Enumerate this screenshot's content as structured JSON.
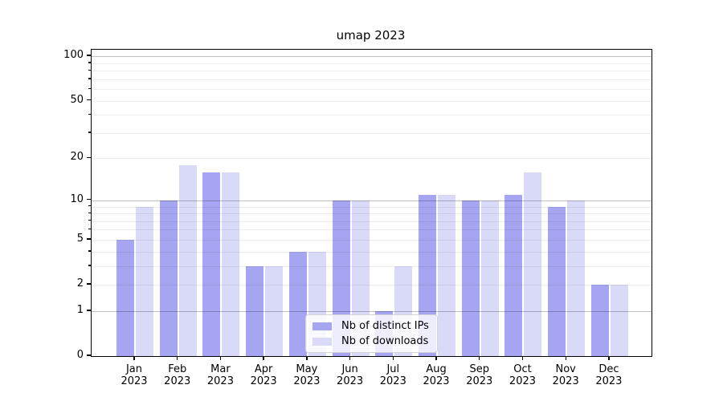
{
  "title": "umap 2023",
  "legend": {
    "items": [
      {
        "label": "Nb of distinct IPs",
        "color": "#a5a5f2"
      },
      {
        "label": "Nb of downloads",
        "color": "#d9d9f8"
      }
    ]
  },
  "axes": {
    "ytick_labels": [
      "100",
      "50",
      "20",
      "10",
      "5",
      "2",
      "1",
      "0"
    ]
  },
  "chart_data": {
    "type": "bar",
    "title": "umap 2023",
    "categories": [
      "Jan 2023",
      "Feb 2023",
      "Mar 2023",
      "Apr 2023",
      "May 2023",
      "Jun 2023",
      "Jul 2023",
      "Aug 2023",
      "Sep 2023",
      "Oct 2023",
      "Nov 2023",
      "Dec 2023"
    ],
    "series": [
      {
        "name": "Nb of distinct IPs",
        "color": "#a5a5f2",
        "values": [
          5,
          10,
          16,
          3,
          4,
          10,
          1,
          11,
          10,
          11,
          9,
          2
        ]
      },
      {
        "name": "Nb of downloads",
        "color": "#d9d9f8",
        "values": [
          9,
          18,
          16,
          3,
          4,
          10,
          3,
          11,
          10,
          16,
          10,
          2
        ]
      }
    ],
    "xlabel": "",
    "ylabel": "",
    "yscale": "log(1+x)",
    "ylim": [
      0,
      110
    ],
    "yticks": [
      0,
      1,
      2,
      5,
      10,
      20,
      50,
      100
    ],
    "major_gridlines": [
      1,
      10,
      100
    ],
    "minor_gridlines": [
      2,
      3,
      4,
      5,
      6,
      7,
      8,
      9,
      20,
      30,
      40,
      50,
      60,
      70,
      80,
      90
    ],
    "grid": "horizontal-only",
    "legend_position": "lower-center-inside"
  },
  "colors": {
    "bar_ips": "#a5a5f2",
    "bar_downloads": "#d9d9f8",
    "axis": "#000000",
    "major_grid": "#c2c2c2",
    "minor_grid": "#ededed",
    "legend_border": "#d4d4d4"
  }
}
